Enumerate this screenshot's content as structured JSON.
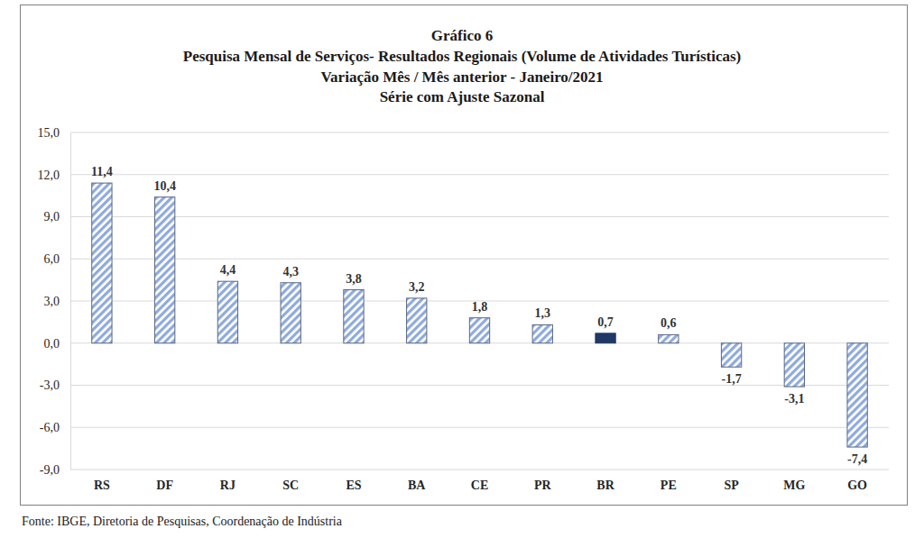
{
  "chart_data": {
    "type": "bar",
    "title": "Gráfico 6",
    "subtitle": [
      "Pesquisa Mensal de Serviços- Resultados Regionais (Volume de Atividades Turísticas)",
      "Variação Mês / Mês anterior - Janeiro/2021",
      "Série com Ajuste Sazonal"
    ],
    "source": "Fonte: IBGE, Diretoria de Pesquisas, Coordenação de Indústria",
    "categories": [
      "RS",
      "DF",
      "RJ",
      "SC",
      "ES",
      "BA",
      "CE",
      "PR",
      "BR",
      "PE",
      "SP",
      "MG",
      "GO"
    ],
    "values": [
      11.4,
      10.4,
      4.4,
      4.3,
      3.8,
      3.2,
      1.8,
      1.3,
      0.7,
      0.6,
      -1.7,
      -3.1,
      -7.4
    ],
    "value_labels": [
      "11,4",
      "10,4",
      "4,4",
      "4,3",
      "3,8",
      "3,2",
      "1,8",
      "1,3",
      "0,7",
      "0,6",
      "-1,7",
      "-3,1",
      "-7,4"
    ],
    "colors": [
      "#8faadc",
      "#8faadc",
      "#8faadc",
      "#8faadc",
      "#8faadc",
      "#8faadc",
      "#8faadc",
      "#8faadc",
      "#1f3864",
      "#8faadc",
      "#8faadc",
      "#8faadc",
      "#8faadc"
    ],
    "ylim": [
      -9,
      15
    ],
    "yticks": [
      {
        "value": -9,
        "label": "-9,0"
      },
      {
        "value": -6,
        "label": "-6,0"
      },
      {
        "value": -3,
        "label": "-3,0"
      },
      {
        "value": 0,
        "label": "0,0"
      },
      {
        "value": 3,
        "label": "3,0"
      },
      {
        "value": 6,
        "label": "6,0"
      },
      {
        "value": 9,
        "label": "9,0"
      },
      {
        "value": 12,
        "label": "12,0"
      },
      {
        "value": 15,
        "label": "15,0"
      }
    ],
    "grid": true,
    "data_labels": true
  }
}
